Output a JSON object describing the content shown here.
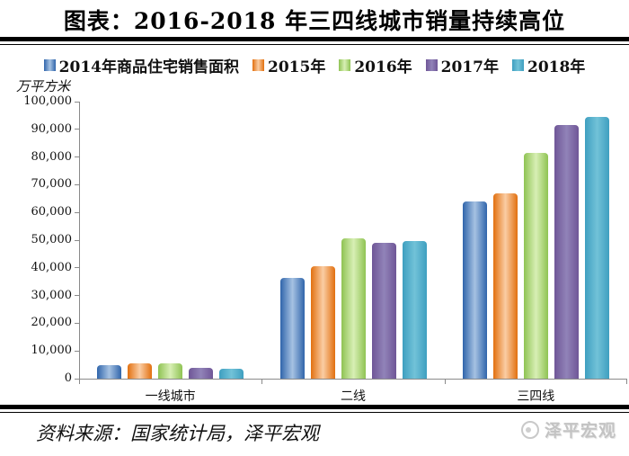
{
  "title": "图表：2016-2018 年三四线城市销量持续高位",
  "source": "资料来源：国家统计局，泽平宏观",
  "watermark": "泽平宏观",
  "chart_data": {
    "type": "bar",
    "title": "图表：2016-2018 年三四线城市销量持续高位",
    "ylabel": "万平方米",
    "xlabel": "",
    "categories": [
      "一线城市",
      "二线",
      "三四线"
    ],
    "series": [
      {
        "name": "2014年商品住宅销售面积",
        "color_edge": "#3065AB",
        "color_mid": "#A6C2E2",
        "values": [
          4900,
          36500,
          64000
        ]
      },
      {
        "name": "2015年",
        "color_edge": "#E2700F",
        "color_mid": "#FACDA4",
        "values": [
          5500,
          40500,
          67000
        ]
      },
      {
        "name": "2016年",
        "color_edge": "#8FC353",
        "color_mid": "#D8EFB5",
        "values": [
          5400,
          50800,
          81500
        ]
      },
      {
        "name": "2017年",
        "color_edge": "#6F5697",
        "color_mid": "#9183B8",
        "values": [
          3900,
          49000,
          91500
        ]
      },
      {
        "name": "2018年",
        "color_edge": "#3E9FC0",
        "color_mid": "#72C2D8",
        "values": [
          3700,
          49700,
          94500
        ]
      }
    ],
    "ylim": [
      0,
      100000
    ],
    "ytick_step": 10000,
    "ytick_labels": [
      "0",
      "10,000",
      "20,000",
      "30,000",
      "40,000",
      "50,000",
      "60,000",
      "70,000",
      "80,000",
      "90,000",
      "100,000"
    ],
    "legend_position": "top",
    "grid": false,
    "axis_color": "#8a8a8a"
  }
}
